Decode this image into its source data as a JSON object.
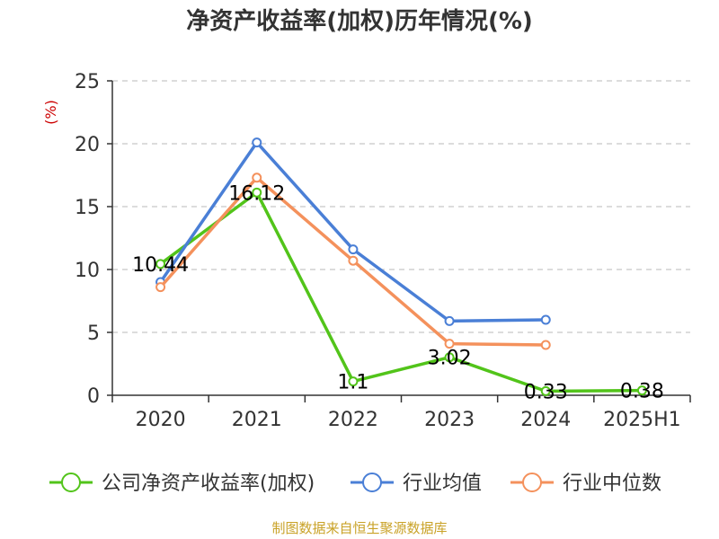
{
  "chart_data": {
    "type": "line",
    "title": "净资产收益率(加权)历年情况(%)",
    "ylabel": "(%)",
    "categories": [
      "2020",
      "2021",
      "2022",
      "2023",
      "2024",
      "2025H1"
    ],
    "ylim": [
      0,
      25
    ],
    "yticks": [
      0,
      5,
      10,
      15,
      20,
      25
    ],
    "grid": true,
    "legend_position": "bottom",
    "series": [
      {
        "name": "公司净资产收益率(加权)",
        "color": "#52c41a",
        "values": [
          10.44,
          16.12,
          1.1,
          3.02,
          0.33,
          0.38
        ],
        "labels": [
          "10.44",
          "16.12",
          "1.1",
          "3.02",
          "0.33",
          "0.38"
        ]
      },
      {
        "name": "行业均值",
        "color": "#4a7fd6",
        "values": [
          9.0,
          20.1,
          11.6,
          5.9,
          6.0,
          null
        ]
      },
      {
        "name": "行业中位数",
        "color": "#f4915c",
        "values": [
          8.6,
          17.3,
          10.7,
          4.1,
          4.0,
          null
        ]
      }
    ]
  },
  "source": "制图数据来自恒生聚源数据库"
}
